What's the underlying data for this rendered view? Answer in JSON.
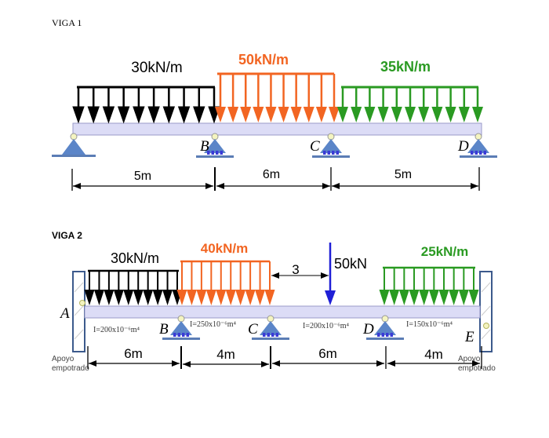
{
  "colors": {
    "black_load": "#000000",
    "orange_load": "#f26522",
    "green_load": "#2a9a22",
    "point_load": "#1f1fd6",
    "beam_fill": "#dcdcf6",
    "beam_stroke": "#9a9ac8",
    "support_fill": "#5b85c8",
    "support_base": "#5b7db5",
    "roller": "#3a3ad6",
    "pin": "#f4f4c0",
    "wall_stroke": "#3c5a8c"
  },
  "viga1": {
    "title": "VIGA 1",
    "loads": [
      {
        "label": "30kN/m",
        "color": "black"
      },
      {
        "label": "50kN/m",
        "color": "orange"
      },
      {
        "label": "35kN/m",
        "color": "green"
      }
    ],
    "supports": [
      {
        "label": "",
        "type": "pin"
      },
      {
        "label": "B",
        "type": "roller"
      },
      {
        "label": "C",
        "type": "roller"
      },
      {
        "label": "D",
        "type": "roller"
      }
    ],
    "spans": [
      "5m",
      "6m",
      "5m"
    ]
  },
  "viga2": {
    "title": "VIGA 2",
    "loads": [
      {
        "label": "30kN/m",
        "color": "black"
      },
      {
        "label": "40kN/m",
        "color": "orange"
      },
      {
        "label": "25kN/m",
        "color": "green"
      }
    ],
    "point_load": {
      "label": "50kN",
      "offset_label": "3"
    },
    "supports": [
      {
        "label": "A",
        "type": "fixed",
        "note_line1": "Apoyo",
        "note_line2": "empotrado"
      },
      {
        "label": "B",
        "type": "roller"
      },
      {
        "label": "C",
        "type": "roller"
      },
      {
        "label": "D",
        "type": "roller"
      },
      {
        "label": "E",
        "type": "fixed",
        "note_line1": "Apoyo",
        "note_line2": "empotrado"
      }
    ],
    "inertias": [
      "I=200x10⁻⁶m⁴",
      "I=250x10⁻⁶m⁴",
      "I=200x10⁻⁶m⁴",
      "I=150x10⁻⁶m⁴"
    ],
    "spans": [
      "6m",
      "4m",
      "6m",
      "4m"
    ]
  }
}
